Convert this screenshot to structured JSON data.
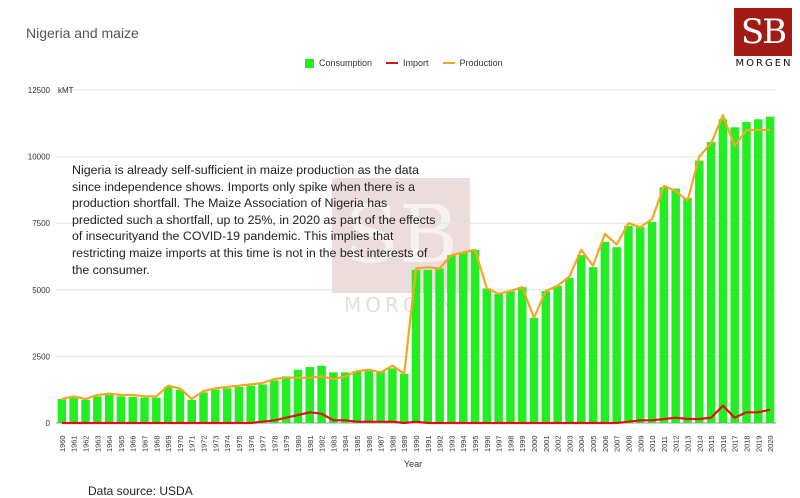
{
  "title": "Nigeria and maize",
  "logo": {
    "mark": "SB",
    "text": "MORGEN"
  },
  "annotation": "Nigeria is already self-sufficient in maize production as the data since independence shows. Imports only spike when there is a production shortfall. The Maize Association of Nigeria has predicted such a shortfall, up to 25%, in 2020 as part of the effects of insecurityand the COVID-19 pandemic. This implies that restricting maize imports at this time is not in the best interests of the consumer.",
  "source": "Data source: USDA",
  "colors": {
    "consumption": "#22ee22",
    "import": "#e01010",
    "production": "#f5a623",
    "grid": "#e4e4e4"
  },
  "chart_data": {
    "type": "bar",
    "xlabel": "Year",
    "ylabel": "kMT",
    "ylim": [
      0,
      12500
    ],
    "yticks": [
      0,
      2500,
      5000,
      7500,
      10000,
      12500
    ],
    "grid": true,
    "legend_position": "top",
    "categories": [
      "1960",
      "1961",
      "1962",
      "1963",
      "1964",
      "1965",
      "1966",
      "1967",
      "1968",
      "1969",
      "1970",
      "1971",
      "1972",
      "1973",
      "1974",
      "1975",
      "1976",
      "1977",
      "1978",
      "1979",
      "1980",
      "1981",
      "1982",
      "1983",
      "1984",
      "1985",
      "1986",
      "1987",
      "1988",
      "1989",
      "1990",
      "1991",
      "1992",
      "1993",
      "1994",
      "1995",
      "1996",
      "1997",
      "1998",
      "1999",
      "2000",
      "2001",
      "2002",
      "2003",
      "2004",
      "2005",
      "2006",
      "2007",
      "2008",
      "2009",
      "2010",
      "2011",
      "2012",
      "2013",
      "2014",
      "2015",
      "2016",
      "2017",
      "2018",
      "2019",
      "2020"
    ],
    "series": [
      {
        "name": "Consumption",
        "type": "bar",
        "values": [
          900,
          950,
          870,
          1000,
          1050,
          1000,
          980,
          950,
          950,
          1350,
          1250,
          870,
          1150,
          1250,
          1300,
          1350,
          1400,
          1450,
          1600,
          1750,
          2000,
          2100,
          2150,
          1900,
          1900,
          1950,
          1950,
          1950,
          2050,
          1850,
          5750,
          5750,
          5800,
          6300,
          6400,
          6500,
          5050,
          4850,
          4950,
          5100,
          3950,
          4950,
          5150,
          5450,
          6300,
          5850,
          6800,
          6600,
          7400,
          7350,
          7550,
          8850,
          8800,
          8450,
          9850,
          10550,
          11400,
          11100,
          11300,
          11400,
          11500
        ]
      },
      {
        "name": "Import",
        "type": "line",
        "values": [
          0,
          0,
          0,
          0,
          0,
          0,
          0,
          0,
          0,
          0,
          0,
          0,
          0,
          0,
          0,
          0,
          0,
          50,
          100,
          200,
          300,
          400,
          350,
          100,
          100,
          50,
          50,
          50,
          50,
          0,
          50,
          0,
          0,
          0,
          0,
          0,
          0,
          0,
          0,
          0,
          0,
          0,
          0,
          0,
          0,
          0,
          0,
          0,
          50,
          100,
          100,
          150,
          200,
          150,
          150,
          200,
          650,
          200,
          400,
          400,
          500
        ]
      },
      {
        "name": "Production",
        "type": "line",
        "values": [
          900,
          1000,
          900,
          1050,
          1100,
          1050,
          1050,
          1000,
          1000,
          1400,
          1300,
          900,
          1200,
          1300,
          1350,
          1400,
          1450,
          1500,
          1650,
          1700,
          1700,
          1700,
          1750,
          1650,
          1750,
          1950,
          2000,
          1900,
          2150,
          1850,
          5800,
          5850,
          5800,
          6300,
          6400,
          6500,
          5050,
          4850,
          4950,
          5100,
          3950,
          4950,
          5150,
          5500,
          6500,
          5900,
          7100,
          6700,
          7500,
          7350,
          7650,
          8900,
          8700,
          8350,
          10000,
          10500,
          11550,
          10400,
          11000,
          11000,
          11000
        ]
      }
    ]
  }
}
